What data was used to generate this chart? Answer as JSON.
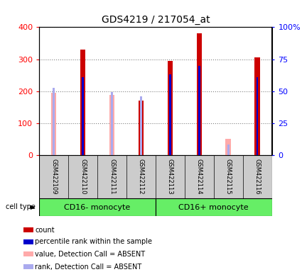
{
  "title": "GDS4219 / 217054_at",
  "samples": [
    "GSM422109",
    "GSM422110",
    "GSM422111",
    "GSM422112",
    "GSM422113",
    "GSM422114",
    "GSM422115",
    "GSM422116"
  ],
  "count_values": [
    null,
    330,
    null,
    170,
    295,
    380,
    null,
    305
  ],
  "count_absent_values": [
    195,
    null,
    188,
    null,
    null,
    null,
    50,
    null
  ],
  "percentile_values": [
    null,
    243,
    null,
    null,
    252,
    278,
    null,
    244
  ],
  "percentile_absent_values": [
    210,
    null,
    197,
    183,
    null,
    null,
    32,
    null
  ],
  "ylim": [
    0,
    400
  ],
  "yticks": [
    0,
    100,
    200,
    300,
    400
  ],
  "y_right_labels": [
    "0",
    "25",
    "50",
    "75",
    "100%"
  ],
  "group1_label": "CD16- monocyte",
  "group2_label": "CD16+ monocyte",
  "cell_type_label": "cell type",
  "count_color": "#cc0000",
  "count_absent_color": "#ffaaaa",
  "percentile_color": "#0000cc",
  "percentile_absent_color": "#aaaaee",
  "sample_box_color": "#cccccc",
  "group_color": "#66ee66",
  "legend_items": [
    {
      "label": "count",
      "color": "#cc0000"
    },
    {
      "label": "percentile rank within the sample",
      "color": "#0000cc"
    },
    {
      "label": "value, Detection Call = ABSENT",
      "color": "#ffaaaa"
    },
    {
      "label": "rank, Detection Call = ABSENT",
      "color": "#aaaaee"
    }
  ]
}
